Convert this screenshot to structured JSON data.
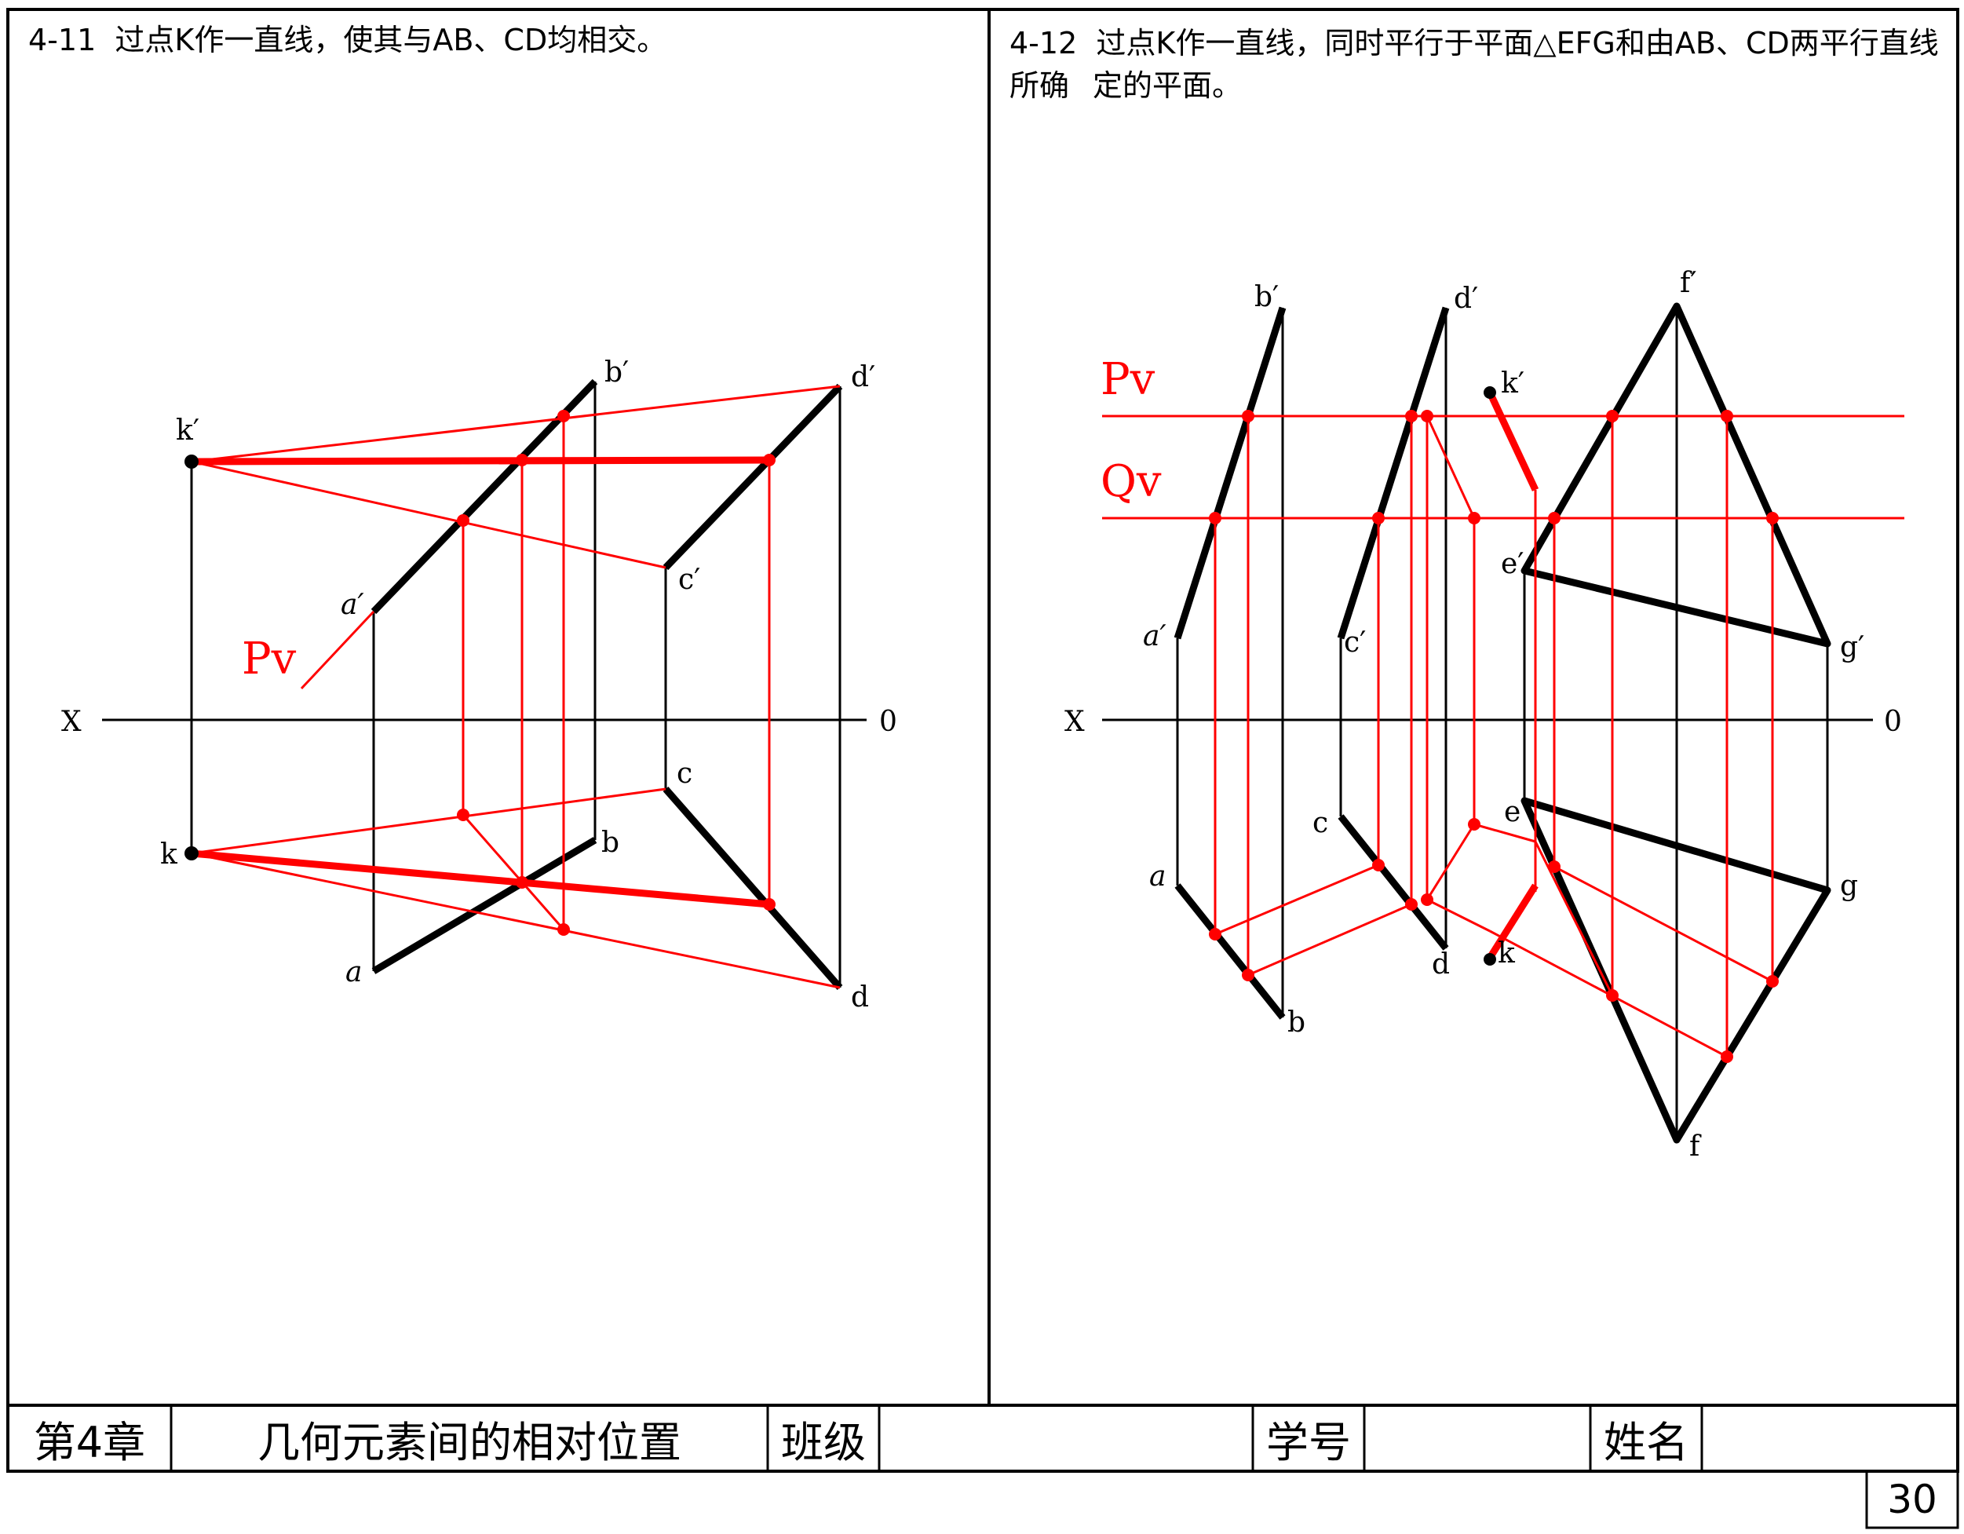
{
  "colors": {
    "ink": "#000000",
    "construction": "#ff0000"
  },
  "problems": [
    {
      "number": "4-11",
      "text": "过点K作一直线，使其与AB、CD均相交。",
      "axis": {
        "x": "X",
        "origin": "0"
      },
      "plane_label": "Pv",
      "point_labels": [
        "k′",
        "k",
        "a′",
        "a",
        "b′",
        "b",
        "c′",
        "c",
        "d′",
        "d"
      ]
    },
    {
      "number": "4-12",
      "text_line1": "过点K作一直线，同时平行于平面△EFG和由AB、CD两平行直线所确",
      "text_line2": "定的平面。",
      "axis": {
        "x": "X",
        "origin": "0"
      },
      "plane_labels": [
        "Pv",
        "Qv"
      ],
      "point_labels": [
        "a′",
        "a",
        "b′",
        "b",
        "c′",
        "c",
        "d′",
        "d",
        "k′",
        "k",
        "e′",
        "e",
        "f′",
        "f",
        "g′",
        "g"
      ]
    }
  ],
  "footer": {
    "chapter": "第4章",
    "chapter_title": "几何元素间的相对位置",
    "class_label": "班级",
    "class_value": "",
    "student_id_label": "学号",
    "student_id_value": "",
    "name_label": "姓名",
    "name_value": ""
  },
  "page_number": "30"
}
